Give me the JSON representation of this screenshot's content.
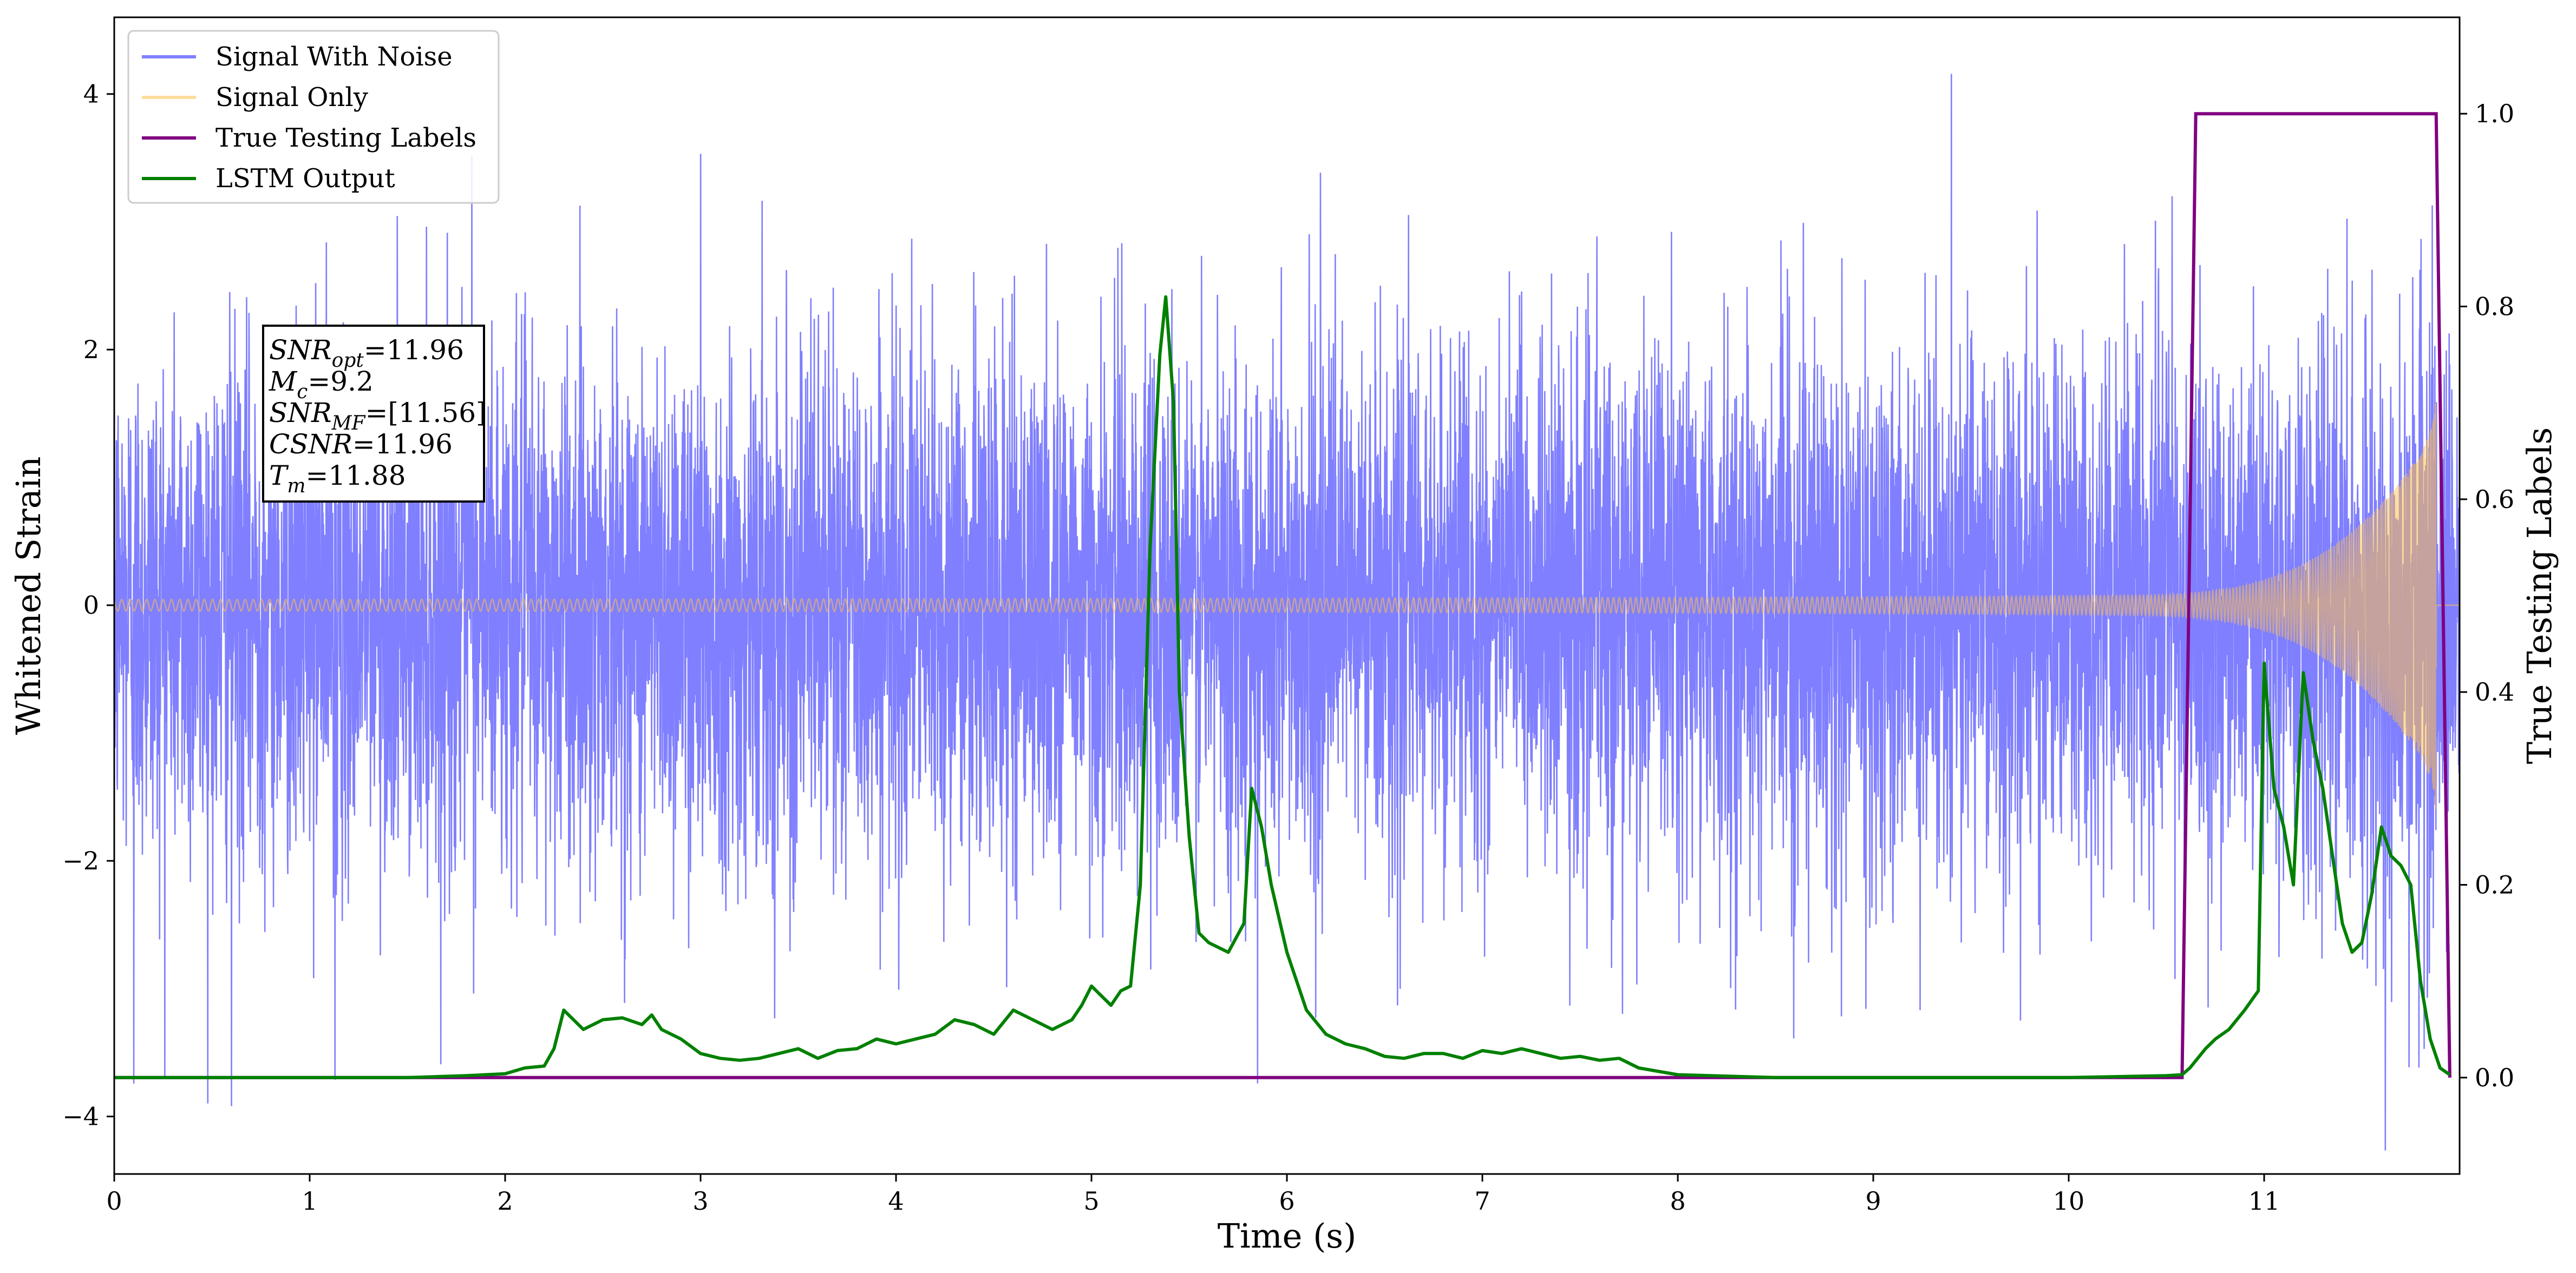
{
  "chart_data": {
    "type": "line",
    "xlabel": "Time (s)",
    "ylabel": "Whitened Strain",
    "y2label": "True Testing Labels",
    "xlim": [
      0,
      12.0
    ],
    "ylim": [
      -4.45,
      4.6
    ],
    "y2lim": [
      -0.1,
      1.1
    ],
    "xticks": [
      "0",
      "1",
      "2",
      "3",
      "4",
      "5",
      "6",
      "7",
      "8",
      "9",
      "10",
      "11"
    ],
    "yticks": [
      "4",
      "2",
      "0",
      "−2",
      "−4"
    ],
    "y2ticks": [
      "1.0",
      "0.8",
      "0.6",
      "0.4",
      "0.2",
      "0.0"
    ],
    "grid": false,
    "legend_position": "top-left",
    "series": [
      {
        "name": "Signal With Noise",
        "axis": "left",
        "color": "#7f7fff",
        "description": "dense noise samples with std approx 1.0 around 0, peaks to about 4.2",
        "std": 1.0,
        "peak_points": [
          {
            "x": 0.1,
            "y": -3.7
          },
          {
            "x": 0.6,
            "y": -3.9
          },
          {
            "x": 1.13,
            "y": -3.75
          },
          {
            "x": 1.83,
            "y": 3.55
          },
          {
            "x": 3.0,
            "y": 3.55
          },
          {
            "x": 5.85,
            "y": -3.75
          },
          {
            "x": 9.4,
            "y": 4.2
          },
          {
            "x": 11.62,
            "y": -3.95
          }
        ]
      },
      {
        "name": "Signal Only",
        "axis": "left",
        "color": "#ffc04d",
        "description": "chirp, amplitude growing from ~0.05 to ~1.7 near 11.88 s",
        "t_merge": 11.88,
        "amplitude_at_merge": 1.7
      },
      {
        "name": "True Testing Labels",
        "axis": "right",
        "color": "#800080",
        "x": [
          0,
          10.58,
          10.65,
          11.88,
          11.95
        ],
        "y": [
          0.0,
          0.0,
          1.0,
          1.0,
          0.0
        ]
      },
      {
        "name": "LSTM Output",
        "axis": "right",
        "color": "#008000",
        "x": [
          0,
          1.0,
          1.5,
          1.8,
          2.0,
          2.1,
          2.2,
          2.25,
          2.3,
          2.4,
          2.5,
          2.6,
          2.7,
          2.75,
          2.8,
          2.9,
          3.0,
          3.1,
          3.2,
          3.3,
          3.4,
          3.5,
          3.6,
          3.7,
          3.8,
          3.9,
          4.0,
          4.1,
          4.2,
          4.3,
          4.4,
          4.5,
          4.6,
          4.7,
          4.8,
          4.9,
          4.95,
          5.0,
          5.05,
          5.1,
          5.15,
          5.2,
          5.25,
          5.3,
          5.35,
          5.38,
          5.42,
          5.45,
          5.5,
          5.55,
          5.6,
          5.7,
          5.78,
          5.82,
          5.87,
          5.92,
          6.0,
          6.1,
          6.2,
          6.3,
          6.4,
          6.5,
          6.6,
          6.7,
          6.8,
          6.9,
          7.0,
          7.1,
          7.2,
          7.3,
          7.4,
          7.5,
          7.6,
          7.7,
          7.8,
          8.0,
          8.5,
          9.0,
          9.5,
          10.0,
          10.5,
          10.58,
          10.62,
          10.7,
          10.75,
          10.82,
          10.9,
          10.97,
          11.0,
          11.05,
          11.1,
          11.15,
          11.2,
          11.25,
          11.3,
          11.35,
          11.4,
          11.45,
          11.5,
          11.55,
          11.6,
          11.65,
          11.7,
          11.75,
          11.8,
          11.85,
          11.9,
          11.95
        ],
        "y": [
          0.0,
          0.0,
          0.0,
          0.002,
          0.004,
          0.01,
          0.012,
          0.03,
          0.07,
          0.05,
          0.06,
          0.062,
          0.055,
          0.065,
          0.05,
          0.04,
          0.025,
          0.02,
          0.018,
          0.02,
          0.025,
          0.03,
          0.02,
          0.028,
          0.03,
          0.04,
          0.035,
          0.04,
          0.045,
          0.06,
          0.055,
          0.045,
          0.07,
          0.06,
          0.05,
          0.06,
          0.075,
          0.095,
          0.085,
          0.075,
          0.09,
          0.095,
          0.2,
          0.55,
          0.75,
          0.81,
          0.7,
          0.4,
          0.25,
          0.15,
          0.14,
          0.13,
          0.16,
          0.3,
          0.26,
          0.2,
          0.13,
          0.07,
          0.045,
          0.035,
          0.03,
          0.022,
          0.02,
          0.025,
          0.025,
          0.02,
          0.028,
          0.025,
          0.03,
          0.025,
          0.02,
          0.022,
          0.018,
          0.02,
          0.01,
          0.003,
          0.0,
          0.0,
          0.0,
          0.0,
          0.002,
          0.003,
          0.01,
          0.03,
          0.04,
          0.05,
          0.07,
          0.09,
          0.43,
          0.3,
          0.26,
          0.2,
          0.42,
          0.35,
          0.3,
          0.23,
          0.16,
          0.13,
          0.14,
          0.19,
          0.26,
          0.23,
          0.22,
          0.2,
          0.1,
          0.04,
          0.01,
          0.003
        ]
      }
    ],
    "annotation": {
      "lines": [
        {
          "base": "SNR",
          "sub": "opt",
          "value": "=11.96"
        },
        {
          "base": "M",
          "sub": "c",
          "value": "=9.2"
        },
        {
          "base": "SNR",
          "sub": "MF",
          "value": "=[11.56]"
        },
        {
          "base": "CSNR",
          "sub": "",
          "value": "=11.96"
        },
        {
          "base": "T",
          "sub": "m",
          "value": "=11.88"
        }
      ]
    }
  }
}
